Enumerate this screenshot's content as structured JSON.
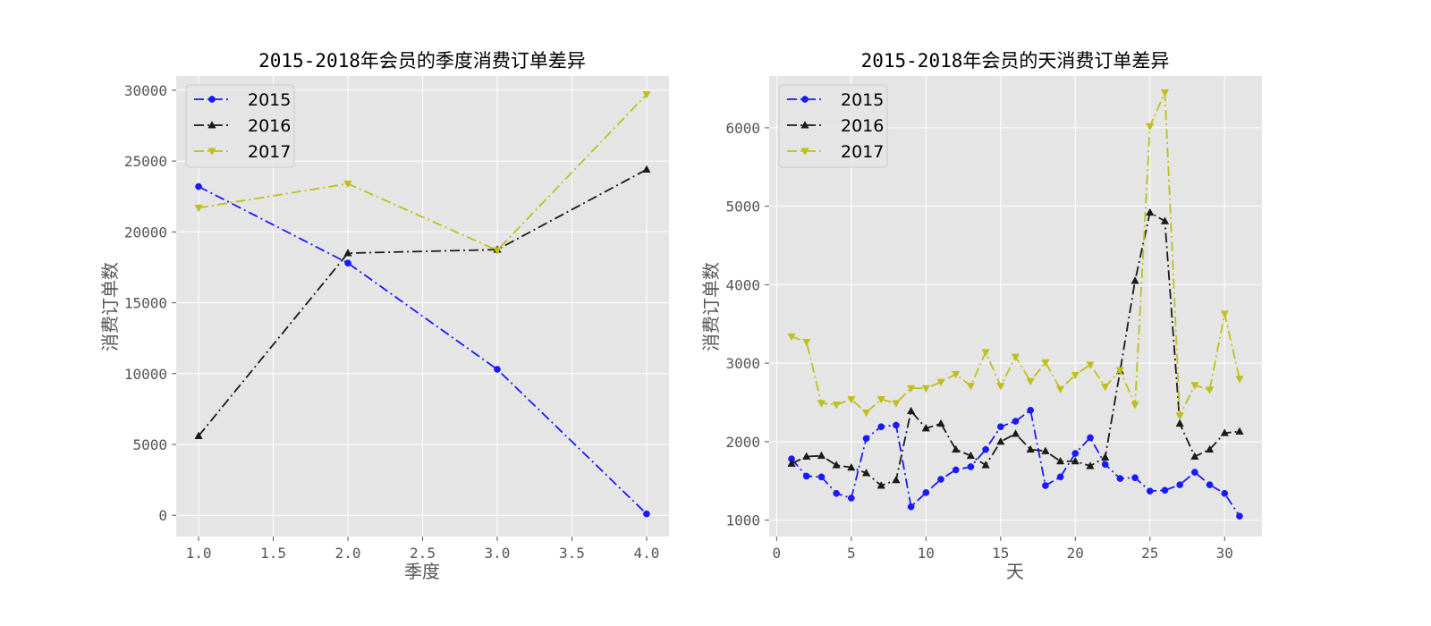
{
  "chart_data": [
    {
      "type": "line",
      "title": "2015-2018年会员的季度消费订单差异",
      "xlabel": "季度",
      "ylabel": "消费订单数",
      "x": [
        1,
        2,
        3,
        4
      ],
      "xlim": [
        0.85,
        4.15
      ],
      "ylim": [
        -1500,
        31000
      ],
      "xticks": [
        1.0,
        1.5,
        2.0,
        2.5,
        3.0,
        3.5,
        4.0
      ],
      "xtick_labels": [
        "1.0",
        "1.5",
        "2.0",
        "2.5",
        "3.0",
        "3.5",
        "4.0"
      ],
      "yticks": [
        0,
        5000,
        10000,
        15000,
        20000,
        25000,
        30000
      ],
      "ytick_labels": [
        "0",
        "5000",
        "10000",
        "15000",
        "20000",
        "25000",
        "30000"
      ],
      "grid": true,
      "legend_position": "top-left",
      "series": [
        {
          "name": "2015",
          "color": "#1a1aff",
          "marker": "circle",
          "line_style": "dash-dot",
          "values": [
            23200,
            17800,
            10300,
            100
          ]
        },
        {
          "name": "2016",
          "color": "#1a1a1a",
          "marker": "triangle-up",
          "line_style": "dash-dot",
          "values": [
            5600,
            18500,
            18750,
            24400
          ]
        },
        {
          "name": "2017",
          "color": "#bfbf1a",
          "marker": "triangle-down",
          "line_style": "dash-dot",
          "values": [
            21700,
            23400,
            18700,
            29700
          ]
        }
      ]
    },
    {
      "type": "line",
      "title": "2015-2018年会员的天消费订单差异",
      "xlabel": "天",
      "ylabel": "消费订单数",
      "x": [
        1,
        2,
        3,
        4,
        5,
        6,
        7,
        8,
        9,
        10,
        11,
        12,
        13,
        14,
        15,
        16,
        17,
        18,
        19,
        20,
        21,
        22,
        23,
        24,
        25,
        26,
        27,
        28,
        29,
        30,
        31
      ],
      "xlim": [
        -0.5,
        32.5
      ],
      "ylim": [
        790,
        6660
      ],
      "xticks": [
        0,
        5,
        10,
        15,
        20,
        25,
        30
      ],
      "xtick_labels": [
        "0",
        "5",
        "10",
        "15",
        "20",
        "25",
        "30"
      ],
      "yticks": [
        1000,
        2000,
        3000,
        4000,
        5000,
        6000
      ],
      "ytick_labels": [
        "1000",
        "2000",
        "3000",
        "4000",
        "5000",
        "6000"
      ],
      "grid": true,
      "legend_position": "top-left",
      "series": [
        {
          "name": "2015",
          "color": "#1a1aff",
          "marker": "circle",
          "line_style": "dash-dot",
          "values": [
            1780,
            1560,
            1550,
            1340,
            1280,
            2040,
            2190,
            2210,
            1170,
            1350,
            1520,
            1640,
            1680,
            1900,
            2190,
            2260,
            2400,
            1440,
            1550,
            1850,
            2050,
            1710,
            1530,
            1540,
            1370,
            1380,
            1450,
            1610,
            1450,
            1340,
            1050
          ]
        },
        {
          "name": "2016",
          "color": "#1a1a1a",
          "marker": "triangle-up",
          "line_style": "dash-dot",
          "values": [
            1720,
            1810,
            1820,
            1700,
            1670,
            1600,
            1440,
            1510,
            2390,
            2170,
            2230,
            1900,
            1820,
            1700,
            2000,
            2100,
            1900,
            1880,
            1750,
            1750,
            1690,
            1800,
            2900,
            4050,
            4920,
            4810,
            2230,
            1810,
            1900,
            2110,
            2130
          ]
        },
        {
          "name": "2017",
          "color": "#bfbf1a",
          "marker": "triangle-down",
          "line_style": "dash-dot",
          "values": [
            3340,
            3270,
            2490,
            2470,
            2540,
            2370,
            2540,
            2490,
            2680,
            2680,
            2760,
            2860,
            2710,
            3140,
            2710,
            3080,
            2770,
            3010,
            2670,
            2850,
            2980,
            2700,
            2910,
            2470,
            6020,
            6450,
            2330,
            2720,
            2660,
            3630,
            2800
          ]
        }
      ]
    }
  ]
}
